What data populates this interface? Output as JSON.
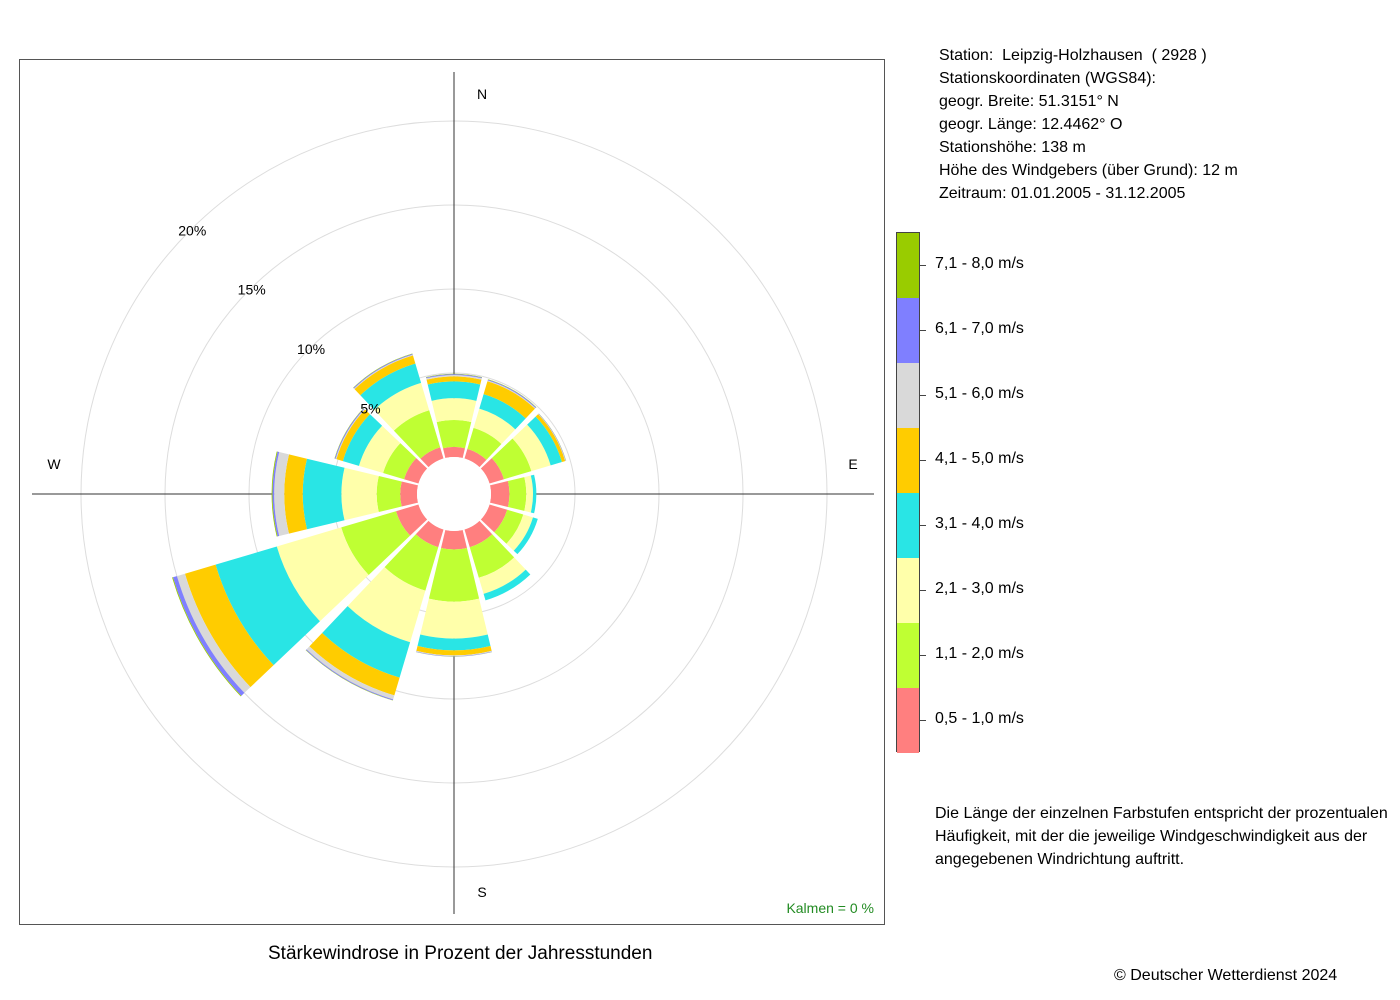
{
  "chart_data": {
    "type": "windrose",
    "title": "Stärkewindrose in Prozent der Jahresstunden",
    "unit": "%",
    "radial_ticks": [
      5,
      10,
      15,
      20
    ],
    "radial_tick_labels": [
      "5%",
      "10%",
      "15%",
      "20%"
    ],
    "compass_labels": {
      "N": "N",
      "E": "E",
      "S": "S",
      "W": "W"
    },
    "directions_deg": [
      0,
      30,
      60,
      90,
      120,
      150,
      180,
      210,
      240,
      270,
      300,
      330
    ],
    "speed_classes": [
      {
        "label": "0,5 - 1,0 m/s",
        "color": "#ff7f7f"
      },
      {
        "label": "1,1 - 2,0 m/s",
        "color": "#bfff33"
      },
      {
        "label": "2,1 - 3,0 m/s",
        "color": "#ffffaa"
      },
      {
        "label": "3,1 - 4,0 m/s",
        "color": "#29e5e5"
      },
      {
        "label": "4,1 - 5,0 m/s",
        "color": "#ffcc00"
      },
      {
        "label": "5,1 - 6,0 m/s",
        "color": "#d9d9d9"
      },
      {
        "label": "6,1 - 7,0 m/s",
        "color": "#7f7fff"
      },
      {
        "label": "7,1 - 8,0 m/s",
        "color": "#99cc00"
      }
    ],
    "series": [
      {
        "direction": 0,
        "values": [
          0.6,
          1.6,
          1.3,
          1.0,
          0.3,
          0.08,
          0.05,
          0.02
        ]
      },
      {
        "direction": 30,
        "values": [
          0.6,
          1.3,
          1.2,
          0.9,
          0.8,
          0.05,
          0.05,
          0.02
        ]
      },
      {
        "direction": 60,
        "values": [
          0.9,
          1.7,
          1.2,
          0.7,
          0.2,
          0.03,
          0.02,
          0.01
        ]
      },
      {
        "direction": 90,
        "values": [
          1.1,
          1.0,
          0.4,
          0.2,
          0.0,
          0.0,
          0.0,
          0.0
        ]
      },
      {
        "direction": 120,
        "values": [
          1.1,
          1.0,
          0.6,
          0.3,
          0.0,
          0.0,
          0.0,
          0.0
        ]
      },
      {
        "direction": 150,
        "values": [
          1.1,
          1.9,
          1.0,
          0.4,
          0.0,
          0.0,
          0.0,
          0.0
        ]
      },
      {
        "direction": 180,
        "values": [
          1.1,
          3.1,
          2.2,
          0.7,
          0.3,
          0.05,
          0.02,
          0.01
        ]
      },
      {
        "direction": 210,
        "values": [
          1.1,
          2.7,
          3.2,
          2.2,
          1.1,
          0.25,
          0.05,
          0.02
        ]
      },
      {
        "direction": 240,
        "values": [
          1.4,
          3.4,
          4.0,
          3.8,
          1.9,
          0.5,
          0.25,
          0.05
        ]
      },
      {
        "direction": 270,
        "values": [
          1.0,
          1.4,
          2.1,
          2.3,
          1.1,
          0.6,
          0.1,
          0.05
        ]
      },
      {
        "direction": 300,
        "values": [
          0.9,
          1.3,
          1.5,
          1.0,
          0.4,
          0.05,
          0.05,
          0.02
        ]
      },
      {
        "direction": 330,
        "values": [
          0.7,
          2.3,
          1.7,
          1.2,
          0.5,
          0.05,
          0.05,
          0.02
        ]
      }
    ],
    "calm_label": "Kalmen  =  0 %"
  },
  "station": {
    "line1": "Station:  Leipzig-Holzhausen  ( 2928 )",
    "line2": "Stationskoordinaten (WGS84):",
    "line3": "geogr. Breite: 51.3151° N",
    "line4": "geogr. Länge: 12.4462° O",
    "line5": "Stationshöhe: 138 m",
    "line6": "Höhe des Windgebers (über Grund): 12 m",
    "line7": "Zeitraum: 01.01.2005 - 31.12.2005"
  },
  "explanation": {
    "line1": "Die Länge der einzelnen Farbstufen entspricht der prozentualen",
    "line2": "Häufigkeit, mit der die jeweilige Windgeschwindigkeit aus der",
    "line3": "angegebenen Windrichtung auftritt."
  },
  "copyright": "© Deutscher Wetterdienst  2024"
}
